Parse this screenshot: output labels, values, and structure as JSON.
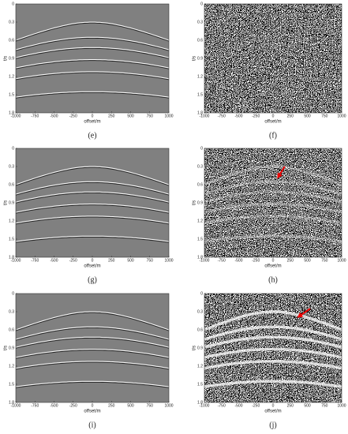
{
  "chart_data": [
    {
      "type": "section",
      "caption": "(e)",
      "xlabel": "offset/m",
      "ylabel": "t/s",
      "xlim": [
        -1000,
        1000
      ],
      "ylim": [
        0,
        1.8
      ],
      "xticks": [
        -1000,
        -750,
        -500,
        -250,
        0,
        250,
        500,
        750,
        1000
      ],
      "yticks": [
        0,
        0.3,
        0.6,
        0.9,
        1.2,
        1.5,
        1.8
      ]
    },
    {
      "type": "section",
      "caption": "(f)",
      "xlabel": "offset/m",
      "ylabel": "t/s",
      "xlim": [
        -1000,
        1000
      ],
      "ylim": [
        0,
        1.8
      ],
      "xticks": [
        -1000,
        -750,
        -500,
        -250,
        0,
        250,
        500,
        750,
        1000
      ],
      "yticks": [
        0,
        0.3,
        0.6,
        0.9,
        1.2,
        1.5,
        1.8
      ]
    },
    {
      "type": "section",
      "caption": "(g)",
      "xlabel": "offset/m",
      "ylabel": "t/s",
      "xlim": [
        -1000,
        1000
      ],
      "ylim": [
        0,
        1.8
      ],
      "xticks": [
        -1000,
        -750,
        -500,
        -250,
        0,
        250,
        500,
        750,
        1000
      ],
      "yticks": [
        0,
        0.3,
        0.6,
        0.9,
        1.2,
        1.5,
        1.8
      ]
    },
    {
      "type": "section",
      "caption": "(h)",
      "xlabel": "offset/m",
      "ylabel": "t/s",
      "xlim": [
        -1000,
        1000
      ],
      "ylim": [
        0,
        1.8
      ],
      "xticks": [
        -1000,
        -750,
        -500,
        -250,
        0,
        250,
        500,
        750,
        1000
      ],
      "yticks": [
        0,
        0.3,
        0.6,
        0.9,
        1.2,
        1.5,
        1.8
      ]
    },
    {
      "type": "section",
      "caption": "(i)",
      "xlabel": "offset/m",
      "ylabel": "t/s",
      "xlim": [
        -1000,
        1000
      ],
      "ylim": [
        0,
        1.8
      ],
      "xticks": [
        -1000,
        -750,
        -500,
        -250,
        0,
        250,
        500,
        750,
        1000
      ],
      "yticks": [
        0,
        0.3,
        0.6,
        0.9,
        1.2,
        1.5,
        1.8
      ]
    },
    {
      "type": "section",
      "caption": "(j)",
      "xlabel": "offset/m",
      "ylabel": "t/s",
      "xlim": [
        -1000,
        1000
      ],
      "ylim": [
        0,
        1.8
      ],
      "xticks": [
        -1000,
        -750,
        -500,
        -250,
        0,
        250,
        500,
        750,
        1000
      ],
      "yticks": [
        0,
        0.3,
        0.6,
        0.9,
        1.2,
        1.5,
        1.8
      ]
    }
  ]
}
